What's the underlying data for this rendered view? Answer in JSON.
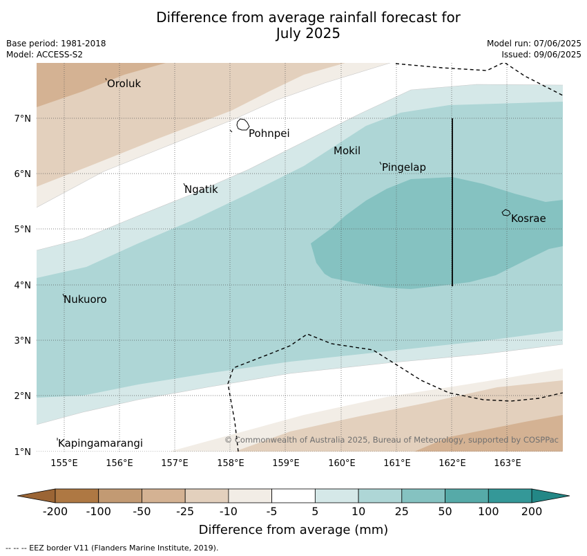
{
  "title_line1": "Difference from average rainfall forecast for",
  "title_line2": "July 2025",
  "meta_left": {
    "base_period": "Base period: 1981-2018",
    "model": "Model: ACCESS-S2"
  },
  "meta_right": {
    "model_run": "Model run: 07/06/2025",
    "issued": "Issued: 09/06/2025"
  },
  "map": {
    "x_ticks": [
      "155°E",
      "156°E",
      "157°E",
      "158°E",
      "159°E",
      "160°E",
      "161°E",
      "162°E",
      "163°E"
    ],
    "y_ticks": [
      "7°N",
      "6°N",
      "5°N",
      "4°N",
      "3°N",
      "2°N",
      "1°N"
    ],
    "places": [
      "Oroluk",
      "Pohnpei",
      "Mokil",
      "Pingelap",
      "Ngatik",
      "Kosrae",
      "Nukuoro",
      "Kapingamarangi"
    ],
    "copyright": "© Commonwealth of Australia 2025, Bureau of Meteorology, supported by COSPPac",
    "colors": {
      "brown_-100": "#c29a73",
      "brown_-50": "#d4b293",
      "brown_-25": "#e3d0bd",
      "brown_-10": "#f2ede6",
      "white": "#ffffff",
      "teal_5": "#d5e8e8",
      "teal_10": "#aed6d6",
      "teal_25": "#85c2c1",
      "teal_50": "#56aaa8",
      "teal_100": "#349898"
    }
  },
  "colorbar": {
    "labels": [
      "-200",
      "-100",
      "-50",
      "-25",
      "-10",
      "-5",
      "5",
      "10",
      "25",
      "50",
      "100",
      "200"
    ],
    "colors": [
      "#ae7843",
      "#c29a73",
      "#d4b293",
      "#e3d0bd",
      "#f2ede6",
      "#ffffff",
      "#d5e8e8",
      "#aed6d6",
      "#85c2c1",
      "#56aaa8",
      "#349898"
    ],
    "under_color": "#9b6535",
    "over_color": "#238786",
    "title": "Difference from average (mm)"
  },
  "footnote": "--  --  -- EEZ border V11 (Flanders Marine Institute, 2019)."
}
